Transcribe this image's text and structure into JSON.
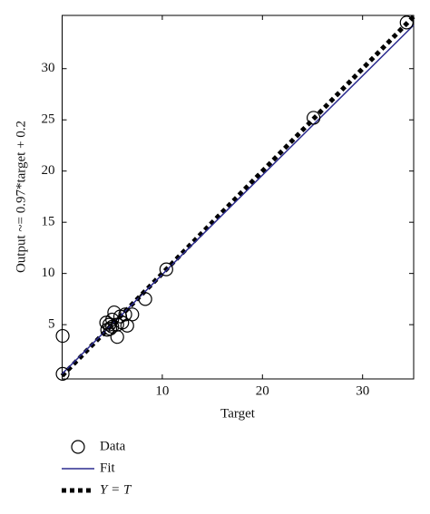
{
  "chart_data": {
    "type": "scatter",
    "x_label": "Target",
    "y_label": "Output ~= 0.97*target + 0.2",
    "xlim": [
      0,
      35.1
    ],
    "ylim": [
      -0.3,
      35.2
    ],
    "xticks": [
      10,
      20,
      30
    ],
    "yticks": [
      5,
      10,
      15,
      20,
      25,
      30
    ],
    "grid": false,
    "series": [
      {
        "name": "Data",
        "color": "#000000",
        "style": "marker",
        "x": [
          0.05,
          0.05,
          4.5,
          4.7,
          5.0,
          5.2,
          4.8,
          5.5,
          5.8,
          6.0,
          6.5,
          5.5,
          7.0,
          6.3,
          4.4,
          5.0,
          8.3,
          10.4,
          25.1,
          34.4
        ],
        "values": [
          0.2,
          3.9,
          4.5,
          5.0,
          5.5,
          6.2,
          4.6,
          5.0,
          5.8,
          5.2,
          4.9,
          3.8,
          6.0,
          6.0,
          5.2,
          4.8,
          7.5,
          10.4,
          25.2,
          34.5
        ]
      },
      {
        "name": "Fit",
        "color": "#2b2b8f",
        "style": "line",
        "x": [
          0,
          35.1
        ],
        "values": [
          0.2,
          34.25
        ]
      },
      {
        "name": "Y = T",
        "color": "#000000",
        "style": "dotted",
        "x": [
          0,
          35.1
        ],
        "values": [
          0,
          35.1
        ]
      }
    ]
  }
}
